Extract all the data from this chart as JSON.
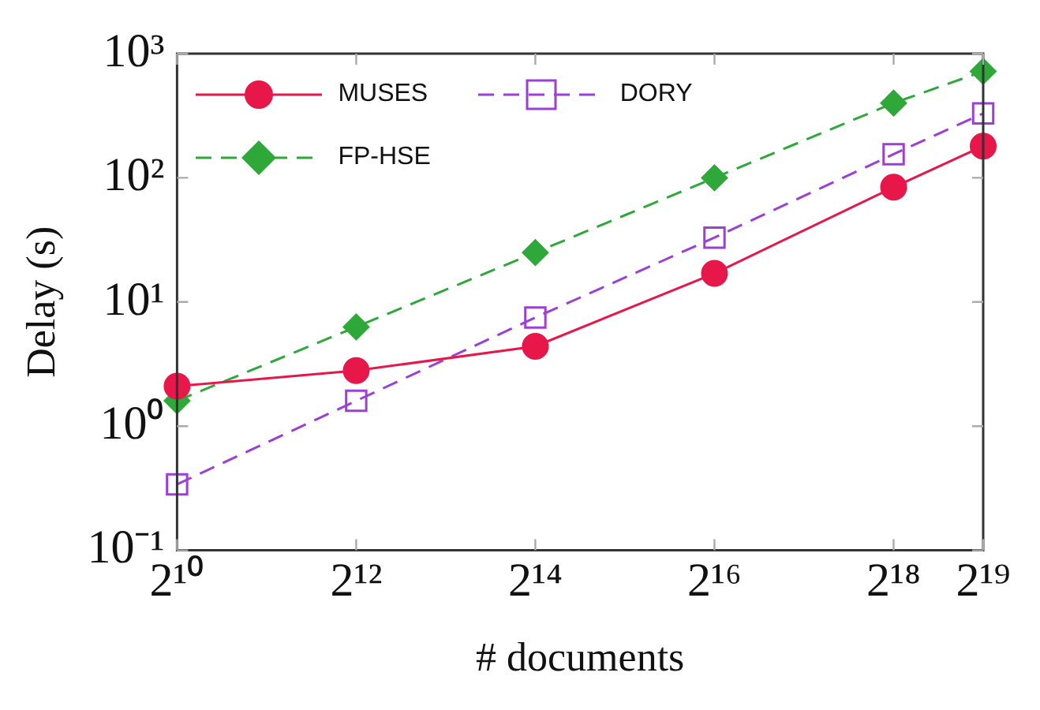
{
  "chart_data": {
    "type": "line",
    "xlabel": "# documents",
    "ylabel": "Delay (s)",
    "x": [
      1024,
      4096,
      16384,
      65536,
      262144,
      524288
    ],
    "log": "xy",
    "grid": false,
    "legend": "top left",
    "xlim": [
      1024,
      524288
    ],
    "xticks": [
      {
        "value": 1024,
        "label": "2¹⁰"
      },
      {
        "value": 4096,
        "label": "2¹²"
      },
      {
        "value": 16384,
        "label": "2¹⁴"
      },
      {
        "value": 65536,
        "label": "2¹⁶"
      },
      {
        "value": 262144,
        "label": "2¹⁸"
      },
      {
        "value": 524288,
        "label": "2¹⁹"
      }
    ],
    "ylim": [
      0.1,
      1000
    ],
    "yticks": [
      {
        "value": 0.1,
        "label": "10⁻¹"
      },
      {
        "value": 1,
        "label": "10⁰"
      },
      {
        "value": 10,
        "label": "10¹"
      },
      {
        "value": 100,
        "label": "10²"
      },
      {
        "value": 1000,
        "label": "10³"
      }
    ],
    "series": [
      {
        "name": "MUSES",
        "color": "#e8174a",
        "marker": "circle",
        "line_style": "solid",
        "values": [
          2.1,
          2.8,
          4.4,
          17,
          84,
          180
        ]
      },
      {
        "name": "DORY",
        "color": "#9b3fd6",
        "marker": "square",
        "line_style": "dashed",
        "values": [
          0.34,
          1.6,
          7.5,
          33,
          155,
          330
        ]
      },
      {
        "name": "FP-HSE",
        "color": "#2fa83a",
        "marker": "diamond",
        "line_style": "dashed",
        "values": [
          1.6,
          6.3,
          25,
          100,
          400,
          720
        ]
      }
    ]
  }
}
